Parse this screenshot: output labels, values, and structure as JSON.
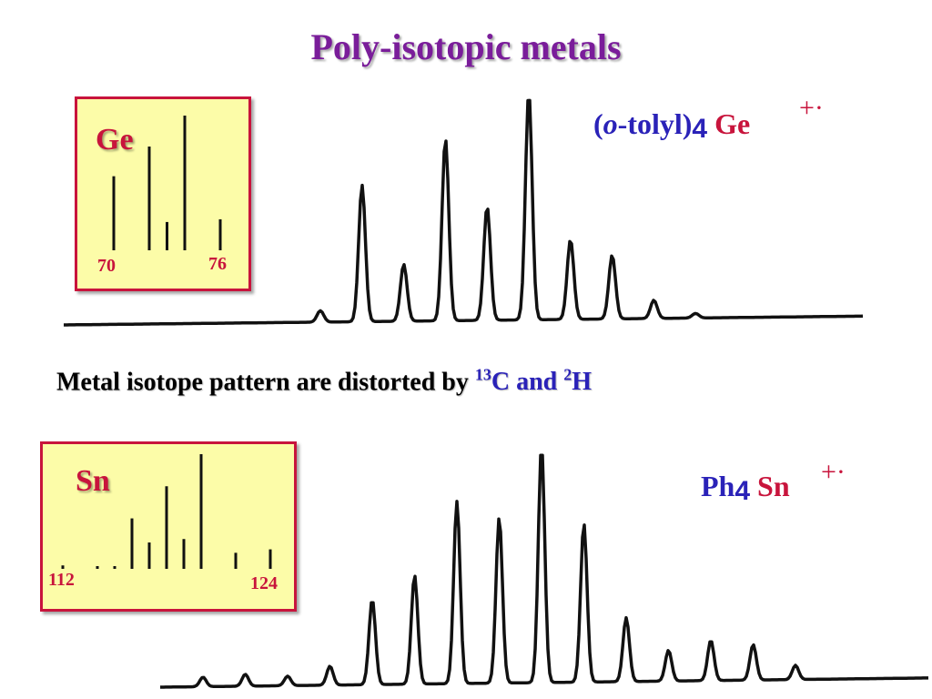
{
  "title": "Poly-isotopic metals",
  "ge_panel": {
    "element": "Ge",
    "axis_start": "70",
    "axis_end": "76",
    "formula_open": "(",
    "formula_italic": "o",
    "formula_ligand": "-tolyl)",
    "formula_sub": "4",
    "formula_metal": "Ge",
    "charge": "+·"
  },
  "note": {
    "text": "Metal isotope pattern are distorted by",
    "c_sup": "13",
    "c_text": "C and",
    "h_sup": "2",
    "h_text": "H"
  },
  "sn_panel": {
    "element": "Sn",
    "axis_start": "112",
    "axis_end": "124",
    "formula_ligand": "Ph",
    "formula_sub": "4",
    "formula_metal": "Sn",
    "charge": "+·"
  },
  "colors": {
    "title": "#7a1d9a",
    "label_red": "#c8143c",
    "label_blue": "#2a22b8",
    "box_fill": "#fcfca8",
    "box_border": "#c8143c"
  },
  "chart_data": [
    {
      "type": "bar",
      "title": "Ge",
      "x": [
        70,
        72,
        73,
        74,
        76
      ],
      "values": [
        0.55,
        0.77,
        0.21,
        1.0,
        0.23
      ],
      "xlabel": "",
      "ylabel": ""
    },
    {
      "type": "bar",
      "title": "Sn",
      "x": [
        112,
        114,
        115,
        116,
        117,
        118,
        119,
        120,
        122,
        124
      ],
      "values": [
        0.03,
        0.02,
        0.01,
        0.44,
        0.23,
        0.72,
        0.26,
        1.0,
        0.14,
        0.17
      ],
      "xlabel": "",
      "ylabel": ""
    },
    {
      "type": "line",
      "title": "(o-tolyl)4 Ge +·",
      "peaks": [
        0.05,
        0.6,
        0.25,
        0.8,
        0.5,
        1.0,
        0.35,
        0.28,
        0.08,
        0.02
      ]
    },
    {
      "type": "line",
      "title": "Ph4 Sn +·",
      "peaks": [
        0.04,
        0.05,
        0.04,
        0.08,
        0.36,
        0.46,
        0.77,
        0.7,
        1.0,
        0.67,
        0.27,
        0.13,
        0.17,
        0.15,
        0.06
      ]
    }
  ]
}
